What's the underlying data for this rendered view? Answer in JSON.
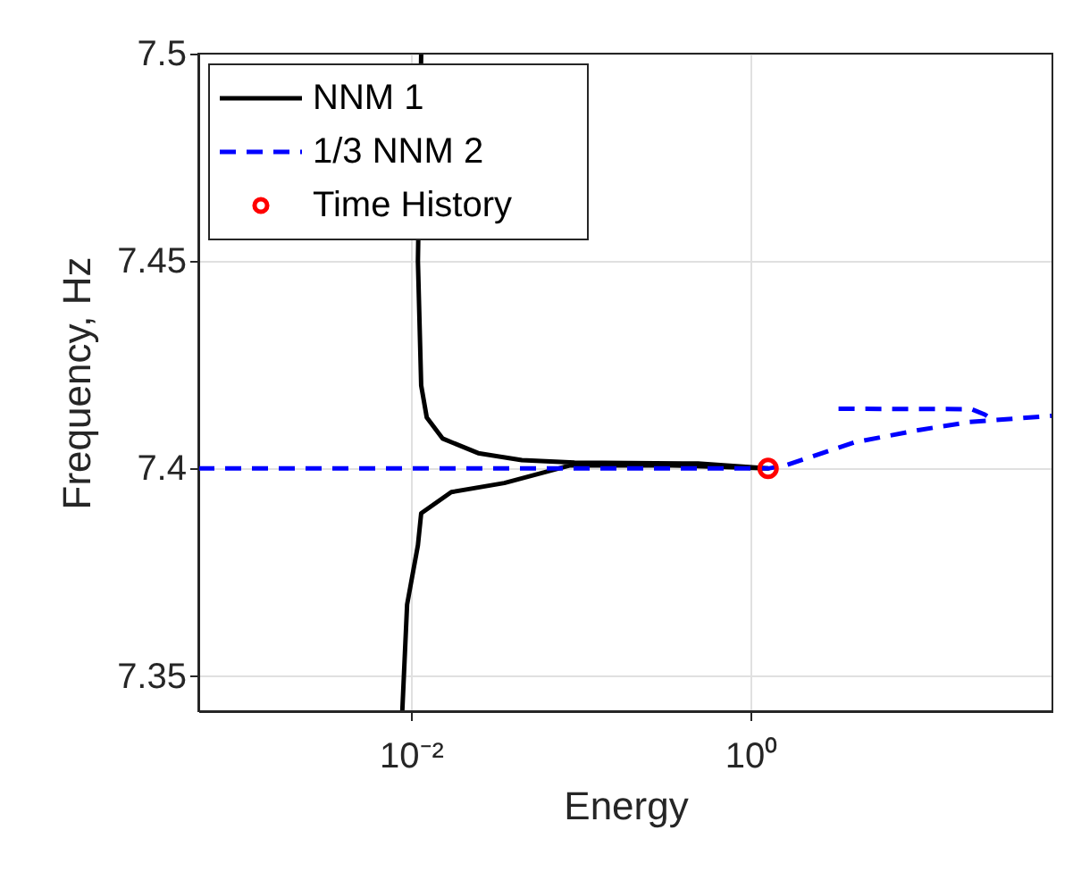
{
  "chart_data": {
    "type": "line",
    "xlabel": "Energy",
    "ylabel": "Frequency, Hz",
    "log": "x",
    "xlim": [
      0.00056,
      60
    ],
    "ylim": [
      7.3415,
      7.5
    ],
    "xticks": [
      {
        "value": 0.01,
        "label": "10⁻²"
      },
      {
        "value": 1,
        "label": "10⁰"
      }
    ],
    "yticks": [
      7.35,
      7.4,
      7.45,
      7.5
    ],
    "grid": true,
    "legend": "top left",
    "series": [
      {
        "name": "NNM 1",
        "color": "#000000",
        "line_style": "solid",
        "x": [
          0.0115,
          0.011,
          0.0115,
          0.0124,
          0.0154,
          0.0249,
          0.045,
          0.092,
          0.49,
          1.27,
          0.3,
          0.0858,
          0.0355,
          0.0173,
          0.0115,
          0.011,
          0.0095,
          0.0089
        ],
        "values": [
          7.5,
          7.45,
          7.42,
          7.4123,
          7.4072,
          7.4037,
          7.402,
          7.4014,
          7.4012,
          7.4,
          7.4008,
          7.4007,
          7.3965,
          7.3943,
          7.3892,
          7.3815,
          7.3672,
          7.3415
        ]
      },
      {
        "name": "1/3 NNM 2",
        "color": "#0000ff",
        "line_style": "dashed",
        "x": [
          0.00056,
          1.27,
          1.6,
          4.1,
          9.9,
          19.5,
          60,
          null,
          3.3,
          20,
          24,
          26.5
        ],
        "values": [
          7.4,
          7.4,
          7.4007,
          7.4063,
          7.4093,
          7.4112,
          7.4127,
          null,
          7.4144,
          7.4143,
          7.413,
          7.4118
        ]
      },
      {
        "name": "Time History",
        "type": "scatter",
        "marker": "circle",
        "color": "#ff0000",
        "x": [
          1.27
        ],
        "values": [
          7.4
        ]
      }
    ]
  }
}
